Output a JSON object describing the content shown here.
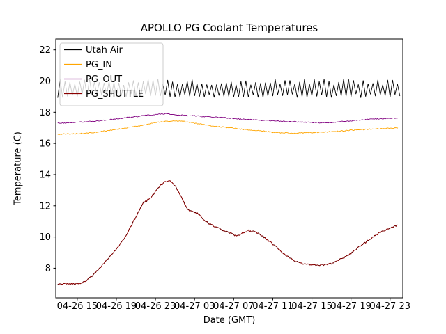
{
  "chart_data": {
    "type": "line",
    "title": "APOLLO PG Coolant Temperatures",
    "xlabel": "Date (GMT)",
    "ylabel": "Temperature (C)",
    "x_unit": "hours since 04-26 00:00 GMT",
    "xlim": [
      12.8,
      48.3
    ],
    "ylim": [
      6.1,
      22.7
    ],
    "grid": false,
    "legend_position": "upper left",
    "x_ticks": [
      {
        "t": 15,
        "label": "04-26 15"
      },
      {
        "t": 19,
        "label": "04-26 19"
      },
      {
        "t": 23,
        "label": "04-26 23"
      },
      {
        "t": 27,
        "label": "04-27 03"
      },
      {
        "t": 31,
        "label": "04-27 07"
      },
      {
        "t": 35,
        "label": "04-27 11"
      },
      {
        "t": 39,
        "label": "04-27 15"
      },
      {
        "t": 43,
        "label": "04-27 19"
      },
      {
        "t": 47,
        "label": "04-27 23"
      }
    ],
    "y_ticks": [
      8,
      10,
      12,
      14,
      16,
      18,
      20,
      22
    ],
    "series": [
      {
        "name": "Utah Air",
        "color": "#000000",
        "kind": "zigzag",
        "start": 13.0,
        "end": 48.1,
        "period": 0.5,
        "low": 19.05,
        "high": 19.95,
        "low_jitter": 0.12,
        "high_jitter": 0.2
      },
      {
        "name": "PG_IN",
        "color": "#ffa500",
        "kind": "keypoints",
        "noise": 0.03,
        "points": [
          [
            13,
            16.6
          ],
          [
            15,
            16.62
          ],
          [
            17,
            16.72
          ],
          [
            19,
            16.9
          ],
          [
            21,
            17.1
          ],
          [
            22,
            17.2
          ],
          [
            23,
            17.35
          ],
          [
            24,
            17.42
          ],
          [
            25,
            17.45
          ],
          [
            26,
            17.4
          ],
          [
            27,
            17.3
          ],
          [
            28,
            17.2
          ],
          [
            29,
            17.1
          ],
          [
            30,
            17.05
          ],
          [
            31,
            16.98
          ],
          [
            32,
            16.9
          ],
          [
            33,
            16.85
          ],
          [
            34,
            16.8
          ],
          [
            35,
            16.72
          ],
          [
            36,
            16.68
          ],
          [
            37,
            16.65
          ],
          [
            38,
            16.68
          ],
          [
            39,
            16.7
          ],
          [
            40,
            16.72
          ],
          [
            41,
            16.75
          ],
          [
            42,
            16.8
          ],
          [
            43,
            16.85
          ],
          [
            44,
            16.88
          ],
          [
            45,
            16.92
          ],
          [
            46,
            16.95
          ],
          [
            47,
            16.98
          ],
          [
            47.8,
            17.0
          ]
        ]
      },
      {
        "name": "PG_OUT",
        "color": "#800080",
        "kind": "keypoints",
        "noise": 0.03,
        "points": [
          [
            13,
            17.3
          ],
          [
            14,
            17.32
          ],
          [
            15,
            17.35
          ],
          [
            16,
            17.4
          ],
          [
            17,
            17.45
          ],
          [
            18,
            17.5
          ],
          [
            19,
            17.58
          ],
          [
            20,
            17.65
          ],
          [
            21,
            17.72
          ],
          [
            22,
            17.8
          ],
          [
            23,
            17.85
          ],
          [
            24,
            17.9
          ],
          [
            25,
            17.85
          ],
          [
            26,
            17.8
          ],
          [
            27,
            17.78
          ],
          [
            28,
            17.72
          ],
          [
            29,
            17.68
          ],
          [
            30,
            17.65
          ],
          [
            31,
            17.6
          ],
          [
            32,
            17.55
          ],
          [
            33,
            17.52
          ],
          [
            34,
            17.48
          ],
          [
            35,
            17.45
          ],
          [
            36,
            17.42
          ],
          [
            37,
            17.4
          ],
          [
            38,
            17.38
          ],
          [
            39,
            17.35
          ],
          [
            40,
            17.33
          ],
          [
            41,
            17.35
          ],
          [
            42,
            17.4
          ],
          [
            43,
            17.45
          ],
          [
            44,
            17.5
          ],
          [
            45,
            17.55
          ],
          [
            46,
            17.58
          ],
          [
            47,
            17.6
          ],
          [
            47.8,
            17.62
          ]
        ]
      },
      {
        "name": "PG_SHUTTLE",
        "color": "#8b0000",
        "kind": "keypoints",
        "noise": 0.05,
        "points": [
          [
            13,
            7.0
          ],
          [
            14,
            7.0
          ],
          [
            15,
            7.02
          ],
          [
            15.5,
            7.08
          ],
          [
            16,
            7.25
          ],
          [
            16.5,
            7.5
          ],
          [
            17,
            7.8
          ],
          [
            17.5,
            8.15
          ],
          [
            18,
            8.5
          ],
          [
            18.5,
            8.85
          ],
          [
            19,
            9.2
          ],
          [
            19.5,
            9.65
          ],
          [
            20,
            10.1
          ],
          [
            20.5,
            10.7
          ],
          [
            21,
            11.3
          ],
          [
            21.5,
            11.9
          ],
          [
            21.8,
            12.25
          ],
          [
            22,
            12.3
          ],
          [
            22.3,
            12.4
          ],
          [
            22.6,
            12.6
          ],
          [
            23,
            12.9
          ],
          [
            23.5,
            13.3
          ],
          [
            24,
            13.55
          ],
          [
            24.3,
            13.6
          ],
          [
            24.6,
            13.55
          ],
          [
            25,
            13.3
          ],
          [
            25.3,
            13.0
          ],
          [
            25.6,
            12.6
          ],
          [
            26,
            12.1
          ],
          [
            26.3,
            11.8
          ],
          [
            26.5,
            11.7
          ],
          [
            27,
            11.6
          ],
          [
            27.3,
            11.5
          ],
          [
            27.6,
            11.35
          ],
          [
            28,
            11.1
          ],
          [
            28.5,
            10.85
          ],
          [
            29,
            10.7
          ],
          [
            29.5,
            10.55
          ],
          [
            30,
            10.4
          ],
          [
            30.5,
            10.3
          ],
          [
            31,
            10.15
          ],
          [
            31.3,
            10.05
          ],
          [
            31.6,
            10.1
          ],
          [
            32,
            10.3
          ],
          [
            32.5,
            10.4
          ],
          [
            33,
            10.35
          ],
          [
            33.5,
            10.25
          ],
          [
            34,
            10.05
          ],
          [
            34.5,
            9.8
          ],
          [
            35,
            9.55
          ],
          [
            35.5,
            9.3
          ],
          [
            36,
            9.0
          ],
          [
            36.5,
            8.75
          ],
          [
            37,
            8.55
          ],
          [
            37.5,
            8.4
          ],
          [
            38,
            8.3
          ],
          [
            38.5,
            8.25
          ],
          [
            39,
            8.2
          ],
          [
            39.5,
            8.2
          ],
          [
            40,
            8.2
          ],
          [
            40.5,
            8.25
          ],
          [
            41,
            8.3
          ],
          [
            41.5,
            8.45
          ],
          [
            42,
            8.6
          ],
          [
            42.5,
            8.75
          ],
          [
            43,
            8.95
          ],
          [
            43.5,
            9.2
          ],
          [
            44,
            9.45
          ],
          [
            44.5,
            9.65
          ],
          [
            45,
            9.9
          ],
          [
            45.5,
            10.1
          ],
          [
            46,
            10.3
          ],
          [
            46.5,
            10.45
          ],
          [
            47,
            10.6
          ],
          [
            47.5,
            10.7
          ],
          [
            47.8,
            10.75
          ]
        ]
      }
    ]
  }
}
